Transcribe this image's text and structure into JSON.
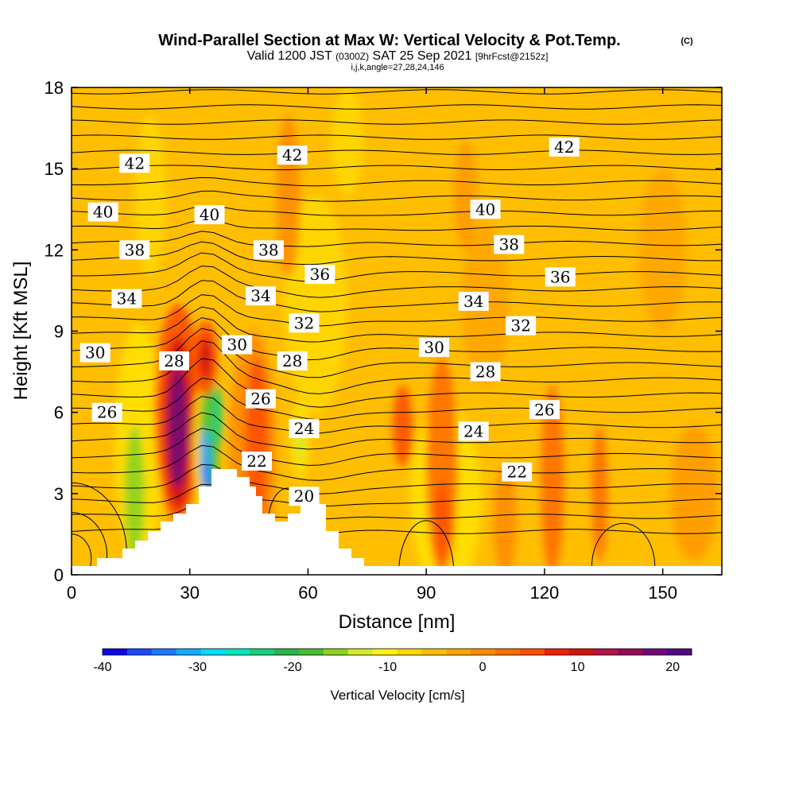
{
  "title": "Wind-Parallel Section at Max W: Vertical Velocity & Pot.Temp.",
  "title_mark": "(C)",
  "subtitle": {
    "prefix": "Valid 1200 JST",
    "utc": "(0300Z)",
    "date": "SAT 25 Sep 2021",
    "fcst": "[9hrFcst@2152z]"
  },
  "indices": "i,j,k,angle=27,28,24,146",
  "chart_data": {
    "type": "heatmap",
    "xlabel": "Distance [nm]",
    "ylabel": "Height [Kft MSL]",
    "xlim": [
      0,
      165
    ],
    "ylim": [
      0,
      18
    ],
    "xticks": [
      "0",
      "30",
      "60",
      "90",
      "120",
      "150"
    ],
    "yticks": [
      "0",
      "3",
      "6",
      "9",
      "12",
      "15",
      "18"
    ],
    "colorbar": {
      "label": "Vertical Velocity [cm/s]",
      "range": [
        -40,
        22
      ],
      "ticks": [
        "-40",
        "-30",
        "-20",
        "-10",
        "0",
        "10",
        "20"
      ],
      "colors": [
        "#0a0ae6",
        "#1f46ff",
        "#1e78ff",
        "#14aaff",
        "#00dcff",
        "#00e6be",
        "#14d278",
        "#2ab44a",
        "#46be32",
        "#8cd21e",
        "#d2eb28",
        "#fff014",
        "#ffd700",
        "#ffbe00",
        "#ffa500",
        "#ff8c00",
        "#ff6e00",
        "#ff5000",
        "#f01e0a",
        "#d2140f",
        "#b41446",
        "#960a5a",
        "#730a78",
        "#500a82"
      ]
    },
    "theta_labels": [
      {
        "text": "42",
        "x": 16,
        "y": 15.2
      },
      {
        "text": "42",
        "x": 56,
        "y": 15.5
      },
      {
        "text": "42",
        "x": 125,
        "y": 15.8
      },
      {
        "text": "40",
        "x": 8,
        "y": 13.4
      },
      {
        "text": "40",
        "x": 35,
        "y": 13.3
      },
      {
        "text": "40",
        "x": 105,
        "y": 13.5
      },
      {
        "text": "38",
        "x": 16,
        "y": 12.0
      },
      {
        "text": "38",
        "x": 50,
        "y": 12.0
      },
      {
        "text": "38",
        "x": 111,
        "y": 12.2
      },
      {
        "text": "36",
        "x": 63,
        "y": 11.1
      },
      {
        "text": "36",
        "x": 124,
        "y": 11.0
      },
      {
        "text": "34",
        "x": 14,
        "y": 10.2
      },
      {
        "text": "34",
        "x": 48,
        "y": 10.3
      },
      {
        "text": "34",
        "x": 102,
        "y": 10.1
      },
      {
        "text": "32",
        "x": 59,
        "y": 9.3
      },
      {
        "text": "32",
        "x": 114,
        "y": 9.2
      },
      {
        "text": "30",
        "x": 6,
        "y": 8.2
      },
      {
        "text": "30",
        "x": 42,
        "y": 8.5
      },
      {
        "text": "30",
        "x": 92,
        "y": 8.4
      },
      {
        "text": "28",
        "x": 26,
        "y": 7.9
      },
      {
        "text": "28",
        "x": 56,
        "y": 7.9
      },
      {
        "text": "28",
        "x": 105,
        "y": 7.5
      },
      {
        "text": "26",
        "x": 9,
        "y": 6.0
      },
      {
        "text": "26",
        "x": 48,
        "y": 6.5
      },
      {
        "text": "26",
        "x": 120,
        "y": 6.1
      },
      {
        "text": "24",
        "x": 59,
        "y": 5.4
      },
      {
        "text": "24",
        "x": 102,
        "y": 5.3
      },
      {
        "text": "22",
        "x": 47,
        "y": 4.2
      },
      {
        "text": "22",
        "x": 113,
        "y": 3.8
      },
      {
        "text": "20",
        "x": 59,
        "y": 2.9
      }
    ]
  }
}
